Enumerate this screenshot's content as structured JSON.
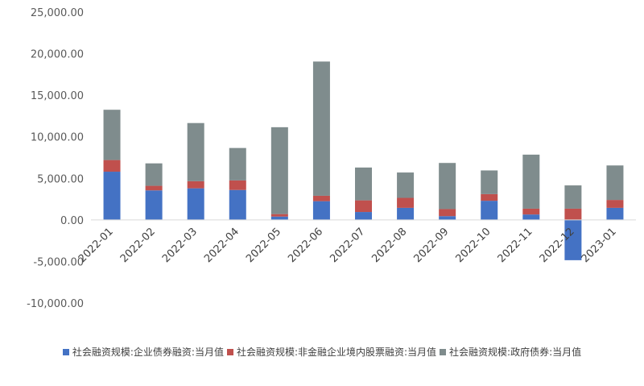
{
  "chart_data": {
    "type": "bar",
    "stacked": true,
    "categories": [
      "2022-01",
      "2022-02",
      "2022-03",
      "2022-04",
      "2022-05",
      "2022-06",
      "2022-07",
      "2022-08",
      "2022-09",
      "2022-10",
      "2022-11",
      "2022-12",
      "2023-01"
    ],
    "series": [
      {
        "name": "社会融资规模:企业债券融资:当月值",
        "color": "#4472c4",
        "values": [
          5800,
          3550,
          3800,
          3600,
          400,
          2250,
          950,
          1450,
          450,
          2300,
          650,
          -4850,
          1450
        ]
      },
      {
        "name": "社会融资规模:非金融企业境内股票融资:当月值",
        "color": "#c0504d",
        "values": [
          1400,
          550,
          850,
          1150,
          300,
          650,
          1400,
          1200,
          850,
          800,
          700,
          1350,
          950
        ]
      },
      {
        "name": "社会融资规模:政府债券:当月值",
        "color": "#7f8c8d",
        "values": [
          6050,
          2700,
          7000,
          3900,
          10450,
          16150,
          3950,
          3050,
          5550,
          2850,
          6500,
          2800,
          4150
        ]
      }
    ],
    "y_ticks": [
      "25,000.00",
      "20,000.00",
      "15,000.00",
      "10,000.00",
      "5,000.00",
      "0.00",
      "-5,000.00",
      "-10,000.00"
    ],
    "ylim": [
      -10000,
      25000
    ],
    "grid": false,
    "legend_position": "bottom"
  }
}
